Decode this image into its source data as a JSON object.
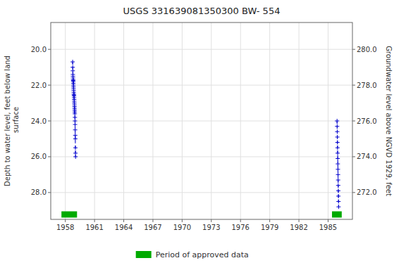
{
  "chart_data": {
    "type": "line",
    "title": "USGS 331639081350300 BW- 554",
    "ylabel": "Depth to water level, feet below land\n surface",
    "y2label": "Groundwater level above NGVD 1929, feet",
    "xlim": [
      1956.5,
      1987.5
    ],
    "xticks": [
      1958,
      1961,
      1964,
      1967,
      1970,
      1973,
      1976,
      1979,
      1982,
      1985
    ],
    "ylim": [
      29.5,
      18.5
    ],
    "yticks": [
      {
        "value": 20.0,
        "label": "20.0"
      },
      {
        "value": 22.0,
        "label": "22.0"
      },
      {
        "value": 24.0,
        "label": "24.0"
      },
      {
        "value": 26.0,
        "label": "26.0"
      },
      {
        "value": 28.0,
        "label": "28.0"
      }
    ],
    "y2lim": [
      270.5,
      281.5
    ],
    "y2ticks": [
      {
        "value": 272.0,
        "label": "272.0"
      },
      {
        "value": 274.0,
        "label": "274.0"
      },
      {
        "value": 276.0,
        "label": "276.0"
      },
      {
        "value": 278.0,
        "label": "278.0"
      },
      {
        "value": 280.0,
        "label": "280.0"
      }
    ],
    "grid": true,
    "legend": "bottom",
    "series": [
      {
        "type": "line",
        "color": "#0000cc",
        "line_style": "dashed",
        "marker": "plus",
        "x": [
          1958.75,
          1958.758333,
          1958.766667,
          1958.775,
          1958.783333,
          1958.791667,
          1958.8,
          1958.808333,
          1958.816667,
          1958.825,
          1958.833333,
          1958.841667,
          1958.85,
          1958.858333,
          1958.866667,
          1958.875,
          1958.883333,
          1958.891667,
          1958.9,
          1958.908333,
          1958.916667,
          1958.925,
          1958.933333,
          1958.941667,
          1958.95,
          1958.958333,
          1958.966667,
          1958.975,
          1958.983333,
          1958.991667,
          1959.0,
          1959.008333,
          1959.016667,
          1959.025,
          1959.033333,
          1959.041667,
          1959.05
        ],
        "values": [
          20.7,
          21.0,
          21.2,
          21.4,
          21.5,
          21.6,
          21.7,
          21.75,
          21.8,
          21.9,
          22.0,
          22.1,
          22.2,
          22.3,
          22.4,
          22.5,
          22.55,
          22.6,
          22.7,
          22.8,
          22.9,
          23.0,
          23.1,
          23.2,
          23.3,
          23.4,
          23.5,
          23.6,
          23.8,
          24.0,
          24.2,
          24.5,
          24.8,
          25.0,
          25.5,
          25.8,
          26.0
        ]
      },
      {
        "type": "line",
        "color": "#0000cc",
        "line_style": "dashed",
        "marker": "plus",
        "x": [
          1985.92,
          1985.93,
          1985.94,
          1985.95,
          1985.96,
          1985.97,
          1985.98,
          1985.99,
          1986.0,
          1986.01,
          1986.02,
          1986.03,
          1986.04,
          1986.05,
          1986.06,
          1986.07,
          1986.08
        ],
        "values": [
          24.0,
          24.3,
          24.6,
          24.9,
          25.2,
          25.5,
          25.8,
          26.1,
          26.4,
          26.7,
          27.0,
          27.3,
          27.6,
          27.9,
          28.2,
          28.5,
          28.8
        ]
      },
      {
        "type": "span",
        "name": "Period of approved data",
        "color": "#00aa00",
        "x_start": [
          1957.6,
          1985.4
        ],
        "x_end": [
          1959.2,
          1986.4
        ],
        "y": 29.05,
        "height": 0.35
      }
    ]
  }
}
